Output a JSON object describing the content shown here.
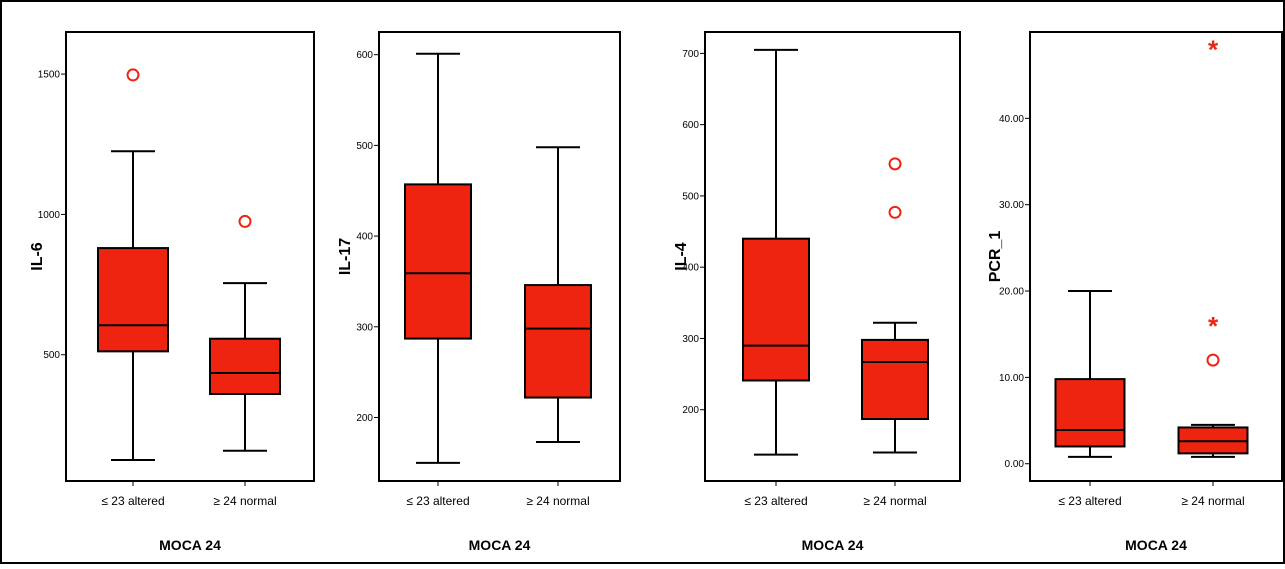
{
  "colors": {
    "box_fill": "#ee2410",
    "outlier": "#ee2410",
    "stroke": "#000000",
    "background": "#ffffff"
  },
  "chart_data": [
    {
      "type": "boxplot",
      "ylabel": "IL-6",
      "xlabel": "MOCA 24",
      "categories": [
        "≤ 23 altered",
        "≥ 24 normal"
      ],
      "yticks": [
        500,
        1000,
        1500
      ],
      "ytick_labels": [
        "500",
        "1000",
        "1500"
      ],
      "ylim": [
        50,
        1650
      ],
      "boxes": [
        {
          "category": "≤ 23 altered",
          "min": 125,
          "q1": 512,
          "median": 605,
          "q3": 880,
          "max": 1225,
          "outliers": [
            {
              "value": 1497,
              "marker": "circle"
            }
          ]
        },
        {
          "category": "≥ 24 normal",
          "min": 158,
          "q1": 360,
          "median": 435,
          "q3": 557,
          "max": 755,
          "outliers": [
            {
              "value": 975,
              "marker": "circle"
            }
          ]
        }
      ]
    },
    {
      "type": "boxplot",
      "ylabel": "IL-17",
      "xlabel": "MOCA 24",
      "categories": [
        "≤ 23 altered",
        "≥ 24 normal"
      ],
      "yticks": [
        200,
        300,
        400,
        500,
        600
      ],
      "ytick_labels": [
        "200",
        "300",
        "400",
        "500",
        "600"
      ],
      "ylim": [
        130,
        625
      ],
      "boxes": [
        {
          "category": "≤ 23 altered",
          "min": 150,
          "q1": 287,
          "median": 359,
          "q3": 457,
          "max": 601,
          "outliers": []
        },
        {
          "category": "≥ 24 normal",
          "min": 173,
          "q1": 222,
          "median": 298,
          "q3": 346,
          "max": 498,
          "outliers": []
        }
      ]
    },
    {
      "type": "boxplot",
      "ylabel": "IL-4",
      "xlabel": "MOCA 24",
      "categories": [
        "≤ 23 altered",
        "≥ 24 normal"
      ],
      "yticks": [
        200,
        300,
        400,
        500,
        600,
        700
      ],
      "ytick_labels": [
        "200",
        "300",
        "400",
        "500",
        "600",
        "700"
      ],
      "ylim": [
        100,
        730
      ],
      "boxes": [
        {
          "category": "≤ 23 altered",
          "min": 137,
          "q1": 241,
          "median": 290,
          "q3": 440,
          "max": 705,
          "outliers": []
        },
        {
          "category": "≥ 24 normal",
          "min": 140,
          "q1": 187,
          "median": 267,
          "q3": 298,
          "max": 322,
          "outliers": [
            {
              "value": 545,
              "marker": "circle"
            },
            {
              "value": 477,
              "marker": "circle"
            }
          ]
        }
      ]
    },
    {
      "type": "boxplot",
      "ylabel": "PCR_1",
      "xlabel": "MOCA 24",
      "categories": [
        "≤ 23 altered",
        "≥ 24 normal"
      ],
      "yticks": [
        0,
        10,
        20,
        30,
        40
      ],
      "ytick_labels": [
        "0.00",
        "10.00",
        "20.00",
        "30.00",
        "40.00"
      ],
      "ylim": [
        -2,
        50
      ],
      "boxes": [
        {
          "category": "≤ 23 altered",
          "min": 0.8,
          "q1": 2.0,
          "median": 3.9,
          "q3": 9.8,
          "max": 20.0,
          "outliers": []
        },
        {
          "category": "≥ 24 normal",
          "min": 0.8,
          "q1": 1.2,
          "median": 2.6,
          "q3": 4.2,
          "max": 4.5,
          "outliers": [
            {
              "value": 48.2,
              "marker": "star"
            },
            {
              "value": 16.2,
              "marker": "star"
            },
            {
              "value": 12.0,
              "marker": "circle"
            }
          ]
        }
      ]
    }
  ]
}
